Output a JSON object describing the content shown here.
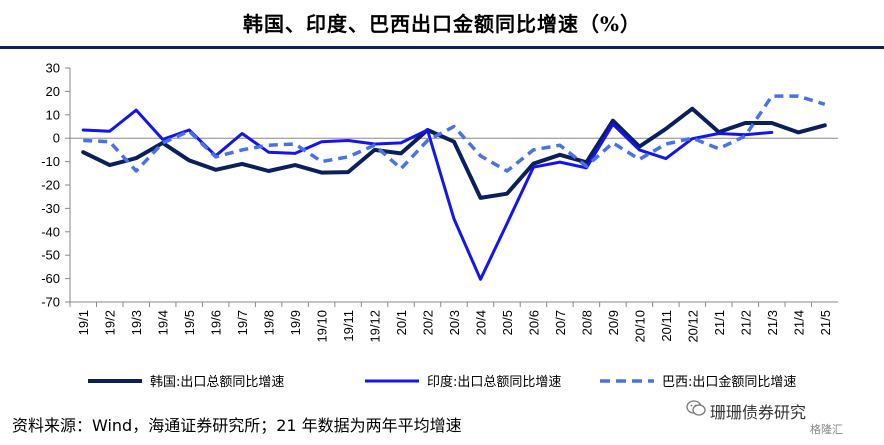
{
  "title": "韩国、印度、巴西出口金额同比增速（%）",
  "footer": "资料来源：Wind，海通证券研究所；21 年数据为两年平均增速",
  "watermark": {
    "text": "珊珊债券研究",
    "sub": "格隆汇"
  },
  "colors": {
    "korea": "#0b1f5c",
    "india": "#1414f0",
    "brazil": "#4a72e8",
    "axis": "#888888",
    "title_rule": "#0b1f5c"
  },
  "chart_data": {
    "type": "line",
    "categories": [
      "19/1",
      "19/2",
      "19/3",
      "19/4",
      "19/5",
      "19/6",
      "19/7",
      "19/8",
      "19/9",
      "19/10",
      "19/11",
      "19/12",
      "20/1",
      "20/2",
      "20/3",
      "20/4",
      "20/5",
      "20/6",
      "20/7",
      "20/8",
      "20/9",
      "20/10",
      "20/11",
      "20/12",
      "21/1",
      "21/2",
      "21/3",
      "21/4",
      "21/5"
    ],
    "ylim": [
      -70,
      30
    ],
    "yticks": [
      30,
      20,
      10,
      0,
      -10,
      -20,
      -30,
      -40,
      -50,
      -60,
      -70
    ],
    "series": [
      {
        "name": "韩国:出口总额同比增速",
        "style": "solid-thick",
        "color": "#0b1f5c",
        "values": [
          -6,
          -11.5,
          -8.5,
          -2,
          -9.5,
          -13.5,
          -11,
          -14,
          -11.5,
          -14.7,
          -14.5,
          -5,
          -6.5,
          3.5,
          -1.5,
          -25.5,
          -23.7,
          -10.9,
          -7.1,
          -10.3,
          7.5,
          -3.6,
          4,
          12.6,
          2.6,
          6.5,
          6.5,
          2.5,
          5.5
        ]
      },
      {
        "name": "印度:出口总额同比增速",
        "style": "solid",
        "color": "#1414f0",
        "values": [
          3.5,
          3,
          12,
          -0.5,
          3.5,
          -7.5,
          2,
          -6,
          -6.5,
          -1.5,
          -1,
          -2.5,
          -2,
          3.5,
          -34.5,
          -60.3,
          -36.5,
          -12.4,
          -10.2,
          -12.7,
          6,
          -5,
          -8.7,
          -0.2,
          2,
          1.5,
          2.5,
          null,
          null
        ]
      },
      {
        "name": "巴西:出口金额同比增速",
        "style": "dashed",
        "color": "#4a72e8",
        "values": [
          -1,
          -1.5,
          -14,
          -2,
          3,
          -8,
          -5,
          -3,
          -2.5,
          -10,
          -8,
          -3,
          -13,
          -1,
          5,
          -7.5,
          -14,
          -5,
          -3,
          -12,
          -2,
          -9,
          -2.5,
          0,
          -4.5,
          1,
          18,
          18,
          14.5
        ]
      }
    ],
    "legend": "bottom"
  }
}
